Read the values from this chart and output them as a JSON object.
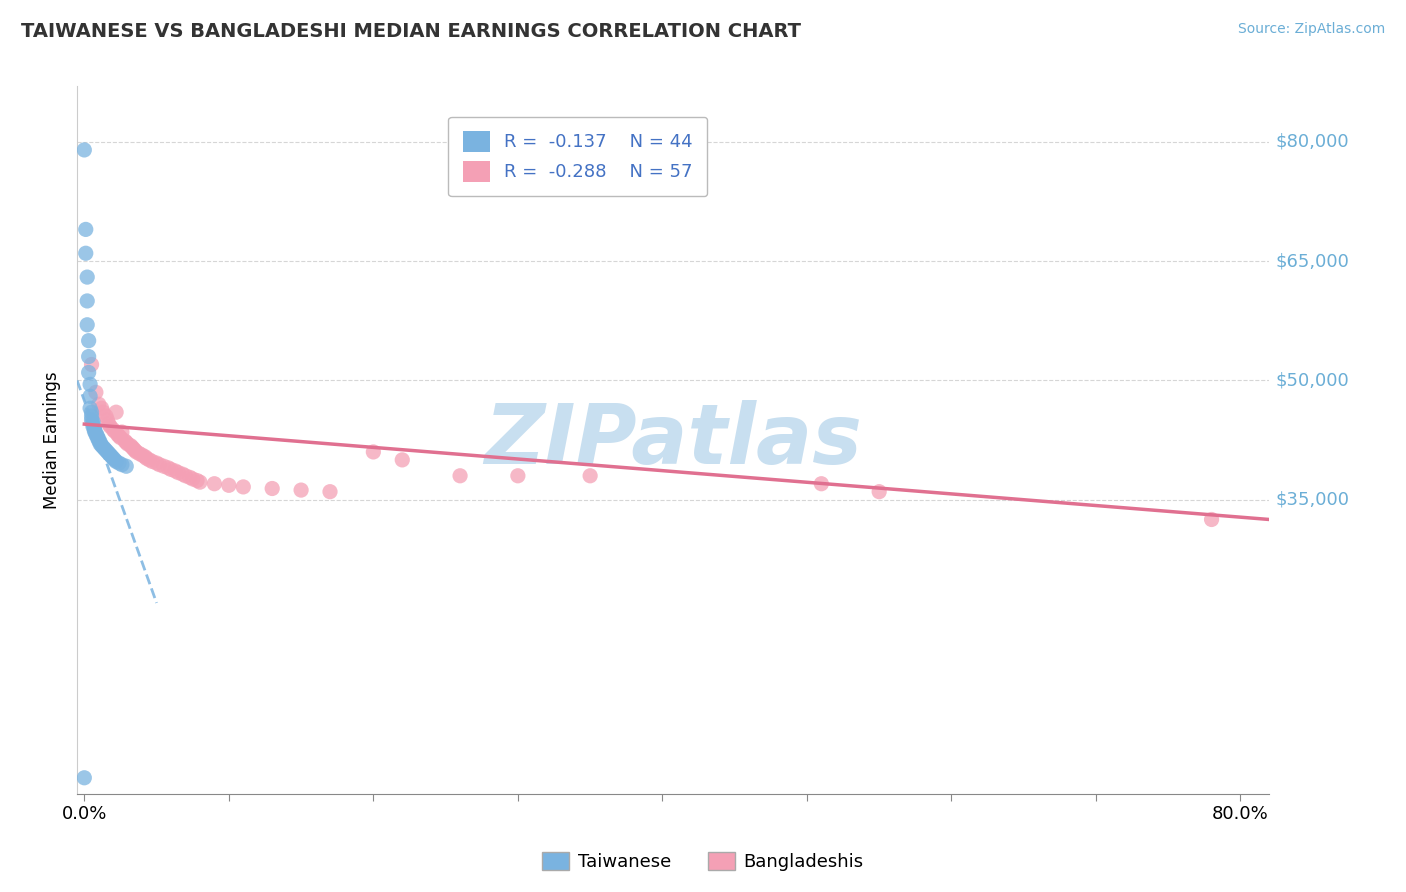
{
  "title": "TAIWANESE VS BANGLADESHI MEDIAN EARNINGS CORRELATION CHART",
  "source": "Source: ZipAtlas.com",
  "ylabel": "Median Earnings",
  "xlim": [
    -0.005,
    0.82
  ],
  "ylim": [
    -2000,
    87000
  ],
  "ytick_vals": [
    35000,
    50000,
    65000,
    80000
  ],
  "ytick_labels": [
    "$35,000",
    "$50,000",
    "$65,000",
    "$80,000"
  ],
  "xtick_vals": [
    0.0,
    0.1,
    0.2,
    0.3,
    0.4,
    0.5,
    0.6,
    0.7,
    0.8
  ],
  "xtick_labels_display": [
    "0.0%",
    "",
    "",
    "",
    "",
    "",
    "",
    "",
    "80.0%"
  ],
  "taiwanese_R": -0.137,
  "taiwanese_N": 44,
  "bangladeshi_R": -0.288,
  "bangladeshi_N": 57,
  "taiwanese_color": "#7ab3e0",
  "bangladeshi_color": "#f4a0b5",
  "tw_line_color": "#7ab3e0",
  "bd_line_color": "#e07090",
  "grid_color": "#cccccc",
  "ytick_color": "#6baed6",
  "bg_color": "#ffffff",
  "tw_scatter_x": [
    0.0,
    0.001,
    0.001,
    0.002,
    0.002,
    0.002,
    0.003,
    0.003,
    0.003,
    0.004,
    0.004,
    0.004,
    0.005,
    0.005,
    0.005,
    0.006,
    0.006,
    0.006,
    0.007,
    0.007,
    0.007,
    0.008,
    0.008,
    0.009,
    0.009,
    0.01,
    0.01,
    0.011,
    0.011,
    0.012,
    0.013,
    0.014,
    0.015,
    0.016,
    0.017,
    0.018,
    0.019,
    0.02,
    0.021,
    0.022,
    0.024,
    0.026,
    0.029,
    0.0
  ],
  "tw_scatter_y": [
    79000,
    69000,
    66000,
    63000,
    60000,
    57000,
    55000,
    53000,
    51000,
    49500,
    48000,
    46500,
    46000,
    45500,
    45000,
    44800,
    44500,
    44200,
    44000,
    43800,
    43600,
    43400,
    43200,
    43000,
    42800,
    42600,
    42400,
    42200,
    42000,
    41800,
    41600,
    41400,
    41200,
    41000,
    40800,
    40600,
    40400,
    40200,
    40000,
    39800,
    39600,
    39400,
    39200,
    0
  ],
  "bd_scatter_x": [
    0.005,
    0.008,
    0.01,
    0.012,
    0.013,
    0.015,
    0.016,
    0.017,
    0.018,
    0.02,
    0.021,
    0.022,
    0.023,
    0.024,
    0.025,
    0.026,
    0.028,
    0.029,
    0.03,
    0.032,
    0.033,
    0.034,
    0.035,
    0.036,
    0.038,
    0.04,
    0.042,
    0.043,
    0.045,
    0.047,
    0.05,
    0.052,
    0.055,
    0.058,
    0.06,
    0.063,
    0.065,
    0.068,
    0.07,
    0.073,
    0.075,
    0.078,
    0.08,
    0.09,
    0.1,
    0.11,
    0.13,
    0.15,
    0.17,
    0.2,
    0.22,
    0.26,
    0.3,
    0.35,
    0.51,
    0.55,
    0.78
  ],
  "bd_scatter_y": [
    52000,
    48500,
    47000,
    46500,
    46000,
    45500,
    45000,
    44500,
    44200,
    43800,
    43600,
    46000,
    43200,
    43000,
    42800,
    43500,
    42400,
    42200,
    42000,
    41800,
    41600,
    41400,
    41200,
    41000,
    40800,
    40600,
    40400,
    40200,
    40000,
    39800,
    39600,
    39400,
    39200,
    39000,
    38800,
    38600,
    38400,
    38200,
    38000,
    37800,
    37600,
    37400,
    37200,
    37000,
    36800,
    36600,
    36400,
    36200,
    36000,
    41000,
    40000,
    38000,
    38000,
    38000,
    37000,
    36000,
    32500
  ],
  "tw_line_x0": -0.005,
  "tw_line_x1": 0.05,
  "tw_line_y0": 50000,
  "tw_line_y1": 22000,
  "bd_line_x0": 0.0,
  "bd_line_x1": 0.82,
  "bd_line_y0": 44500,
  "bd_line_y1": 32500,
  "legend_loc": "upper center",
  "watermark": "ZIPatlas",
  "watermark_color": "#c8dff0"
}
